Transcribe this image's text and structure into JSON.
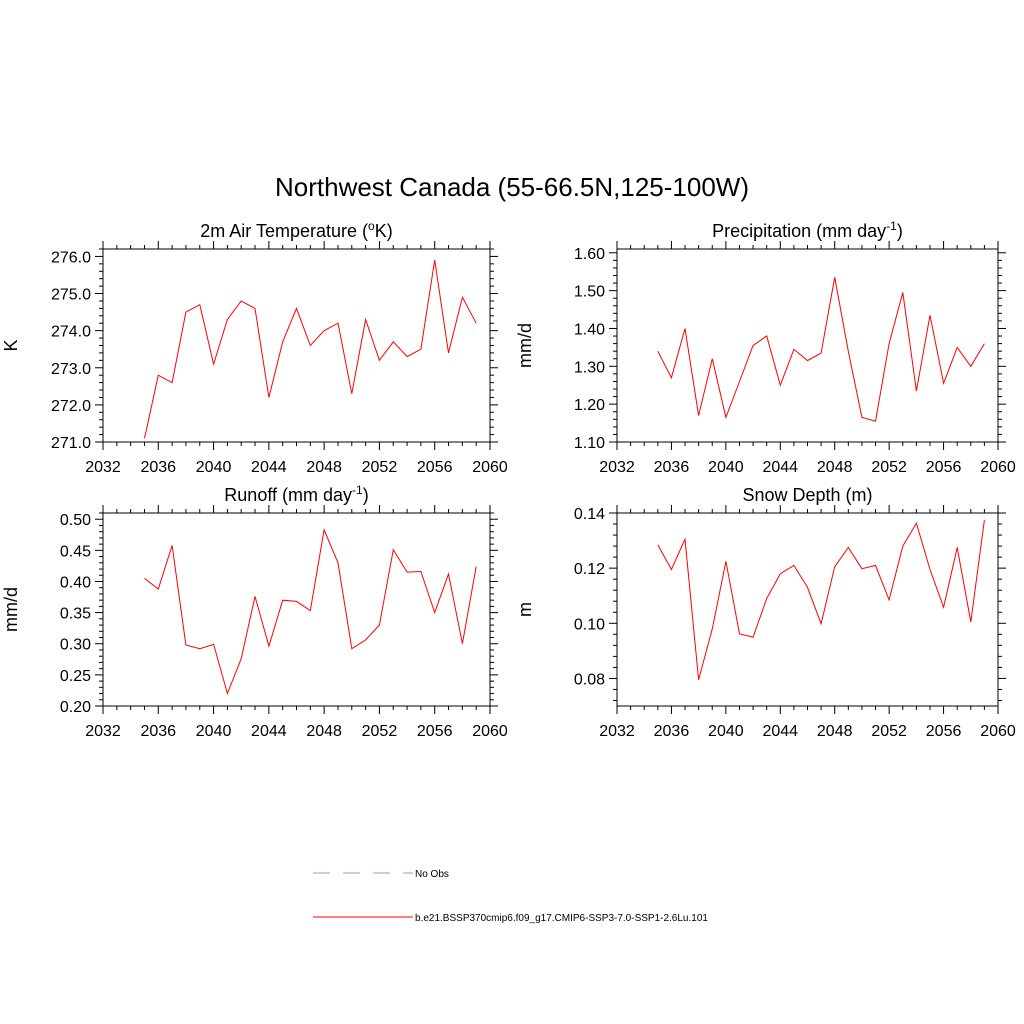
{
  "figure": {
    "title": "Northwest Canada (55-66.5N,125-100W)"
  },
  "legend": {
    "items": [
      {
        "label": "No Obs",
        "color": "#9999dd",
        "dash": true
      },
      {
        "label": "b.e21.BSSP370cmip6.f09_g17.CMIP6-SSP3-7.0-SSP1-2.6Lu.101",
        "color": "#ff0000",
        "dash": false
      }
    ]
  },
  "chart_data": [
    {
      "type": "line",
      "title_parts": [
        "2m Air Temperature (",
        "o",
        "K)"
      ],
      "title_style": "sup",
      "ylabel": "K",
      "xlim": [
        2032,
        2060
      ],
      "xticks": [
        2032,
        2036,
        2040,
        2044,
        2048,
        2052,
        2056,
        2060
      ],
      "ylim": [
        271.0,
        276.2
      ],
      "yticks": [
        271.0,
        272.0,
        273.0,
        274.0,
        275.0,
        276.0
      ],
      "ytick_labels": [
        "271.0",
        "272.0",
        "273.0",
        "274.0",
        "275.0",
        "276.0"
      ],
      "ymajor_step": 1.0,
      "yminor_step": 0.2,
      "color": "#ff0000",
      "x": [
        2035,
        2036,
        2037,
        2038,
        2039,
        2040,
        2041,
        2042,
        2043,
        2044,
        2045,
        2046,
        2047,
        2048,
        2049,
        2050,
        2051,
        2052,
        2053,
        2054,
        2055,
        2056,
        2057,
        2058,
        2059
      ],
      "values": [
        271.1,
        272.8,
        272.6,
        274.5,
        274.7,
        273.1,
        274.3,
        274.8,
        274.6,
        272.2,
        273.7,
        274.6,
        273.6,
        274.0,
        274.2,
        272.3,
        274.3,
        273.2,
        273.7,
        273.3,
        273.5,
        275.9,
        273.4,
        274.9,
        274.2
      ]
    },
    {
      "type": "line",
      "title_parts": [
        "Precipitation (mm day",
        "-1",
        ")"
      ],
      "title_style": "sup",
      "ylabel": "mm/d",
      "xlim": [
        2032,
        2060
      ],
      "xticks": [
        2032,
        2036,
        2040,
        2044,
        2048,
        2052,
        2056,
        2060
      ],
      "ylim": [
        1.1,
        1.61
      ],
      "yticks": [
        1.1,
        1.2,
        1.3,
        1.4,
        1.5,
        1.6
      ],
      "ytick_labels": [
        "1.10",
        "1.20",
        "1.30",
        "1.40",
        "1.50",
        "1.60"
      ],
      "ymajor_step": 0.1,
      "yminor_step": 0.02,
      "color": "#ff0000",
      "x": [
        2035,
        2036,
        2037,
        2038,
        2039,
        2040,
        2041,
        2042,
        2043,
        2044,
        2045,
        2046,
        2047,
        2048,
        2049,
        2050,
        2051,
        2052,
        2053,
        2054,
        2055,
        2056,
        2057,
        2058,
        2059
      ],
      "values": [
        1.34,
        1.27,
        1.4,
        1.17,
        1.32,
        1.165,
        1.26,
        1.355,
        1.38,
        1.25,
        1.345,
        1.315,
        1.335,
        1.535,
        1.34,
        1.165,
        1.155,
        1.36,
        1.495,
        1.235,
        1.435,
        1.255,
        1.35,
        1.3,
        1.36
      ]
    },
    {
      "type": "line",
      "title_parts": [
        "Runoff (mm day",
        "-1",
        ")"
      ],
      "title_style": "sup",
      "ylabel": "mm/d",
      "xlim": [
        2032,
        2060
      ],
      "xticks": [
        2032,
        2036,
        2040,
        2044,
        2048,
        2052,
        2056,
        2060
      ],
      "ylim": [
        0.2,
        0.51
      ],
      "yticks": [
        0.2,
        0.25,
        0.3,
        0.35,
        0.4,
        0.45,
        0.5
      ],
      "ytick_labels": [
        "0.20",
        "0.25",
        "0.30",
        "0.35",
        "0.40",
        "0.45",
        "0.50"
      ],
      "ymajor_step": 0.05,
      "yminor_step": 0.01,
      "color": "#ff0000",
      "x": [
        2035,
        2036,
        2037,
        2038,
        2039,
        2040,
        2041,
        2042,
        2043,
        2044,
        2045,
        2046,
        2047,
        2048,
        2049,
        2050,
        2051,
        2052,
        2053,
        2054,
        2055,
        2056,
        2057,
        2058,
        2059
      ],
      "values": [
        0.405,
        0.388,
        0.458,
        0.298,
        0.292,
        0.299,
        0.22,
        0.276,
        0.376,
        0.296,
        0.37,
        0.368,
        0.353,
        0.483,
        0.43,
        0.292,
        0.306,
        0.33,
        0.451,
        0.415,
        0.416,
        0.35,
        0.412,
        0.3,
        0.424
      ]
    },
    {
      "type": "line",
      "title_parts": [
        "Snow Depth (m)"
      ],
      "title_style": "plain",
      "ylabel": "m",
      "xlim": [
        2032,
        2060
      ],
      "xticks": [
        2032,
        2036,
        2040,
        2044,
        2048,
        2052,
        2056,
        2060
      ],
      "ylim": [
        0.07,
        0.14
      ],
      "yticks": [
        0.08,
        0.1,
        0.12,
        0.14
      ],
      "ytick_labels": [
        "0.08",
        "0.10",
        "0.12",
        "0.14"
      ],
      "ymajor_step": 0.02,
      "yminor_step": 0.004,
      "color": "#ff0000",
      "x": [
        2035,
        2036,
        2037,
        2038,
        2039,
        2040,
        2041,
        2042,
        2043,
        2044,
        2045,
        2046,
        2047,
        2048,
        2049,
        2050,
        2051,
        2052,
        2053,
        2054,
        2055,
        2056,
        2057,
        2058,
        2059
      ],
      "values": [
        0.1285,
        0.1195,
        0.1305,
        0.0795,
        0.098,
        0.1225,
        0.0962,
        0.095,
        0.109,
        0.118,
        0.121,
        0.113,
        0.0998,
        0.1205,
        0.1275,
        0.1198,
        0.121,
        0.1085,
        0.128,
        0.1363,
        0.1195,
        0.1058,
        0.1275,
        0.1005,
        0.1375
      ]
    }
  ]
}
